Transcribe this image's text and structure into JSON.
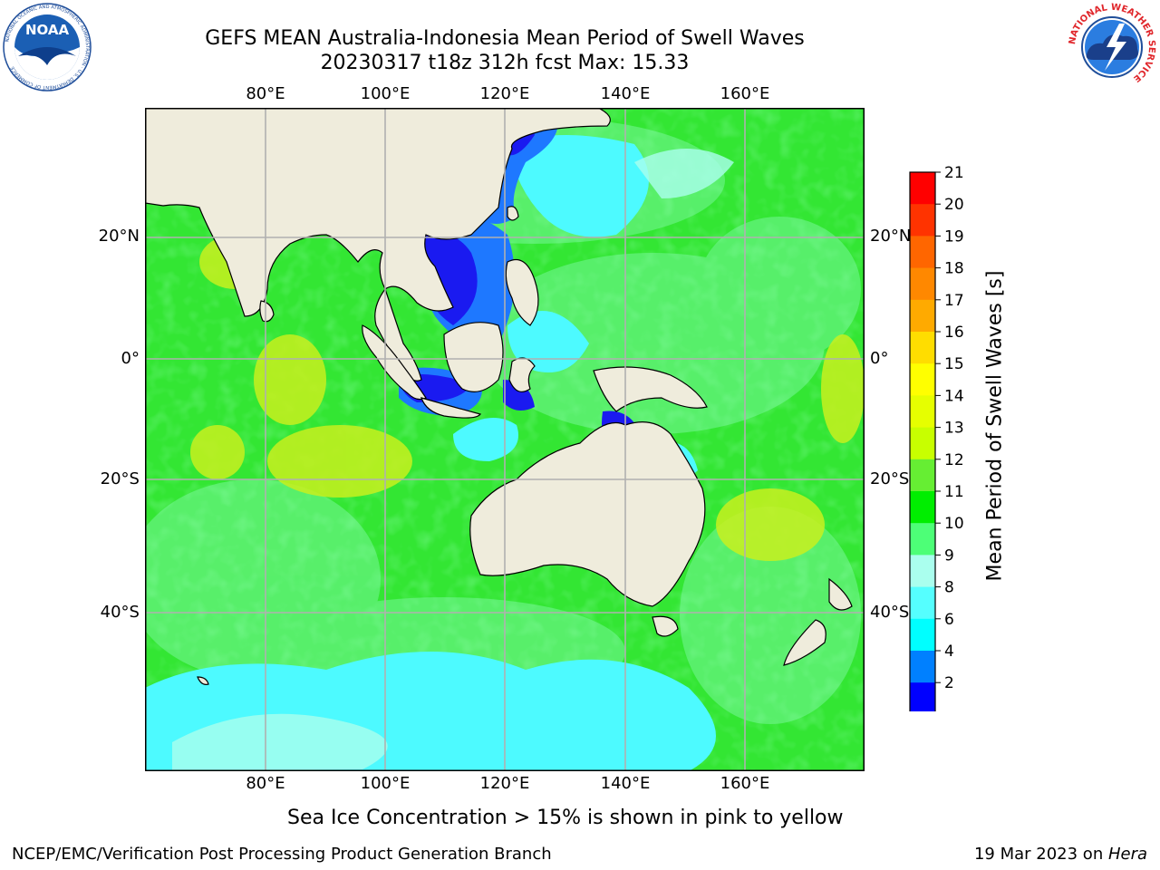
{
  "title": {
    "line1": "GEFS MEAN Australia-Indonesia Mean Period of Swell Waves",
    "line2": "20230317 t18z 312h fcst   Max: 15.33"
  },
  "map": {
    "lon_labels": [
      "80°E",
      "100°E",
      "120°E",
      "140°E",
      "160°E"
    ],
    "lat_labels": [
      "20°N",
      "0°",
      "20°S",
      "40°S"
    ],
    "colors": {
      "land": "#efecdc",
      "ocean_green": "#33e633",
      "ocean_light_green": "#5cf070",
      "ocean_yellow_green": "#c8f01e",
      "ocean_cyan": "#4dfaff",
      "ocean_blue": "#1e78ff",
      "ocean_dark_blue": "#1a1af0",
      "grid": "#b0b0b0"
    }
  },
  "colorbar": {
    "label": "Mean Period of Swell Waves [s]",
    "ticks": [
      "21",
      "20",
      "19",
      "18",
      "17",
      "16",
      "15",
      "14",
      "13",
      "12",
      "11",
      "10",
      "9",
      "8",
      "6",
      "4",
      "2"
    ],
    "colors": [
      "#ff0000",
      "#ff3300",
      "#ff6600",
      "#ff8800",
      "#ffaa00",
      "#ffdd00",
      "#ffff00",
      "#e6ff00",
      "#c8ff00",
      "#66ee33",
      "#00ee00",
      "#4dff77",
      "#aaffee",
      "#55ffff",
      "#00ffff",
      "#0080ff",
      "#0000ff"
    ]
  },
  "note": "Sea Ice Concentration > 15% is shown in pink to yellow",
  "footer": {
    "left": "NCEP/EMC/Verification Post Processing Product Generation Branch",
    "date": "19 Mar 2023 on ",
    "host": "Hera"
  },
  "logos": {
    "noaa": "NOAA",
    "noaa_ring": "NATIONAL OCEANIC AND ATMOSPHERIC ADMINISTRATION · U.S. DEPARTMENT OF COMMERCE",
    "nws_ring": "NATIONAL WEATHER SERVICE"
  }
}
